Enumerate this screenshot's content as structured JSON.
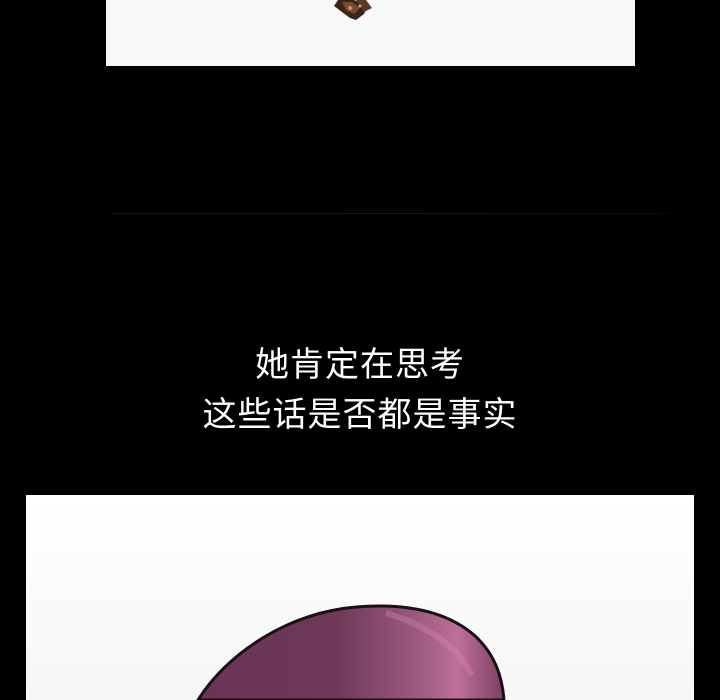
{
  "caption": {
    "line1": "她肯定在思考",
    "line2": "这些话是否都是事实"
  },
  "colors": {
    "background": "#000000",
    "panel": "#f8f8f8",
    "caption_text": "#ffffff",
    "hair_dark": "#4a2a3a",
    "hair_mid": "#7a3f5f",
    "hair_highlight": "#b86a94",
    "earring": "#5a3a2a"
  }
}
